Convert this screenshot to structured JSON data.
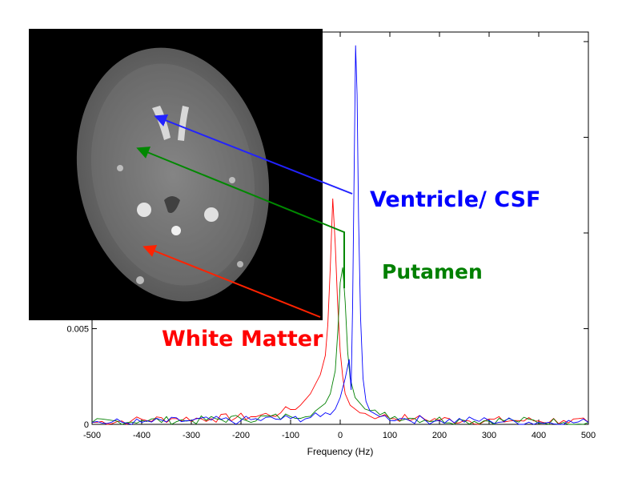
{
  "chart_data": {
    "type": "line",
    "xlabel": "Frequency (Hz)",
    "ylabel": "",
    "xlim": [
      -500,
      500
    ],
    "ylim": [
      0,
      0.0205
    ],
    "x_ticks": [
      -500,
      -400,
      -300,
      -200,
      -100,
      0,
      100,
      200,
      300,
      400,
      500
    ],
    "y_ticks": [
      0,
      0.005
    ],
    "x_tick_labels": [
      "-500",
      "-400",
      "-300",
      "-200",
      "-100",
      "0",
      "100",
      "200",
      "300",
      "400",
      "500"
    ],
    "y_tick_labels": [
      "0",
      "0.005"
    ],
    "grid": false,
    "series": [
      {
        "name": "White Matter",
        "color": "#ff0000",
        "x": [
          -500,
          -420,
          -340,
          -260,
          -180,
          -120,
          -80,
          -60,
          -40,
          -30,
          -25,
          -20,
          -15,
          -10,
          -5,
          0,
          5,
          10,
          20,
          40,
          80,
          150,
          250,
          350,
          450,
          500
        ],
        "y": [
          0.0001,
          0.0002,
          0.0003,
          0.0003,
          0.0004,
          0.0006,
          0.001,
          0.0016,
          0.0026,
          0.0036,
          0.0052,
          0.0082,
          0.0118,
          0.0094,
          0.0062,
          0.0038,
          0.0025,
          0.0016,
          0.001,
          0.0006,
          0.0004,
          0.0003,
          0.0002,
          0.0002,
          0.0002,
          0.0001
        ]
      },
      {
        "name": "Putamen",
        "color": "#008000",
        "x": [
          -500,
          -400,
          -300,
          -200,
          -100,
          -50,
          -30,
          -20,
          -10,
          -5,
          0,
          5,
          10,
          15,
          20,
          30,
          50,
          80,
          150,
          250,
          350,
          450,
          500
        ],
        "y": [
          0.0001,
          0.0002,
          0.0002,
          0.0003,
          0.0004,
          0.0007,
          0.0011,
          0.0016,
          0.0028,
          0.0048,
          0.0074,
          0.0082,
          0.0064,
          0.0038,
          0.0024,
          0.0014,
          0.0008,
          0.0005,
          0.0003,
          0.0002,
          0.0002,
          0.0001,
          0.0001
        ]
      },
      {
        "name": "Ventricle/ CSF",
        "color": "#0000ff",
        "x": [
          -500,
          -400,
          -300,
          -200,
          -100,
          -40,
          -10,
          0,
          10,
          18,
          22,
          25,
          28,
          31,
          34,
          37,
          41,
          46,
          52,
          60,
          80,
          120,
          200,
          300,
          400,
          500
        ],
        "y": [
          0.0001,
          0.0001,
          0.0002,
          0.0002,
          0.0003,
          0.0004,
          0.0008,
          0.0014,
          0.0024,
          0.0034,
          0.0018,
          0.0062,
          0.0132,
          0.0198,
          0.0172,
          0.0108,
          0.0056,
          0.0024,
          0.0012,
          0.0007,
          0.0004,
          0.0003,
          0.0002,
          0.0002,
          0.0001,
          0.0001
        ]
      }
    ]
  },
  "annotations": {
    "ventricle": {
      "label": "Ventricle/ CSF",
      "color": "#0000ff"
    },
    "putamen": {
      "label": "Putamen",
      "color": "#008000"
    },
    "white_matter": {
      "label": "White Matter",
      "color": "#ff0000"
    }
  },
  "inset_image": {
    "description_icon": "brain-mri-slice-icon"
  }
}
